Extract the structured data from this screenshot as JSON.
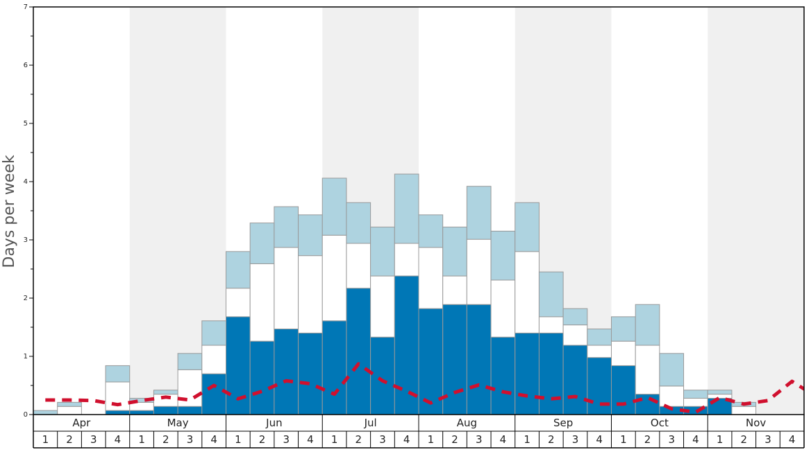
{
  "chart_data": {
    "type": "bar",
    "stacked": true,
    "ylabel": "Days per week",
    "ylim": [
      0,
      7
    ],
    "y_ticks": [
      "0",
      "1",
      "2",
      "3",
      "4",
      "5",
      "6",
      "7"
    ],
    "months": [
      "Apr",
      "May",
      "Jun",
      "Jul",
      "Aug",
      "Sep",
      "Oct",
      "Nov"
    ],
    "week_labels": [
      "1",
      "2",
      "3",
      "4"
    ],
    "band_colors": [
      "#ffffff",
      "#f0f0f0"
    ],
    "colors": {
      "dark": "#0077b6",
      "white": "#ffffff",
      "light": "#aed3e0",
      "line": "#d0102e",
      "bar_stroke": "#999999"
    },
    "series": [
      {
        "key": "dark",
        "values": [
          0,
          0,
          0,
          0.07,
          0.07,
          0.14,
          0.14,
          0.7,
          1.68,
          1.26,
          1.47,
          1.4,
          1.61,
          2.17,
          1.33,
          2.38,
          1.82,
          1.89,
          1.89,
          1.33,
          1.4,
          1.4,
          1.19,
          0.98,
          0.84,
          0.35,
          0.14,
          0.14,
          0.28,
          0,
          0,
          0
        ]
      },
      {
        "key": "white",
        "values": [
          0,
          0.14,
          0,
          0.49,
          0.14,
          0.21,
          0.63,
          0.49,
          0.49,
          1.33,
          1.4,
          1.33,
          1.47,
          0.77,
          1.05,
          0.56,
          1.05,
          0.49,
          1.12,
          0.98,
          1.4,
          0.28,
          0.35,
          0.21,
          0.42,
          0.84,
          0.35,
          0.14,
          0.07,
          0.14,
          0,
          0
        ]
      },
      {
        "key": "light",
        "values": [
          0.07,
          0.07,
          0,
          0.28,
          0.07,
          0.07,
          0.28,
          0.42,
          0.63,
          0.7,
          0.7,
          0.7,
          0.98,
          0.7,
          0.84,
          1.19,
          0.56,
          0.84,
          0.91,
          0.84,
          0.84,
          0.77,
          0.28,
          0.28,
          0.42,
          0.7,
          0.56,
          0.14,
          0.07,
          0.07,
          0,
          0
        ]
      }
    ],
    "line": {
      "values": [
        0.25,
        0.25,
        0.24,
        0.17,
        0.24,
        0.3,
        0.25,
        0.5,
        0.27,
        0.4,
        0.58,
        0.53,
        0.35,
        0.87,
        0.58,
        0.4,
        0.2,
        0.38,
        0.51,
        0.39,
        0.32,
        0.27,
        0.31,
        0.18,
        0.18,
        0.29,
        0.1,
        0.04,
        0.29,
        0.18,
        0.24,
        0.57,
        0.31
      ]
    }
  }
}
